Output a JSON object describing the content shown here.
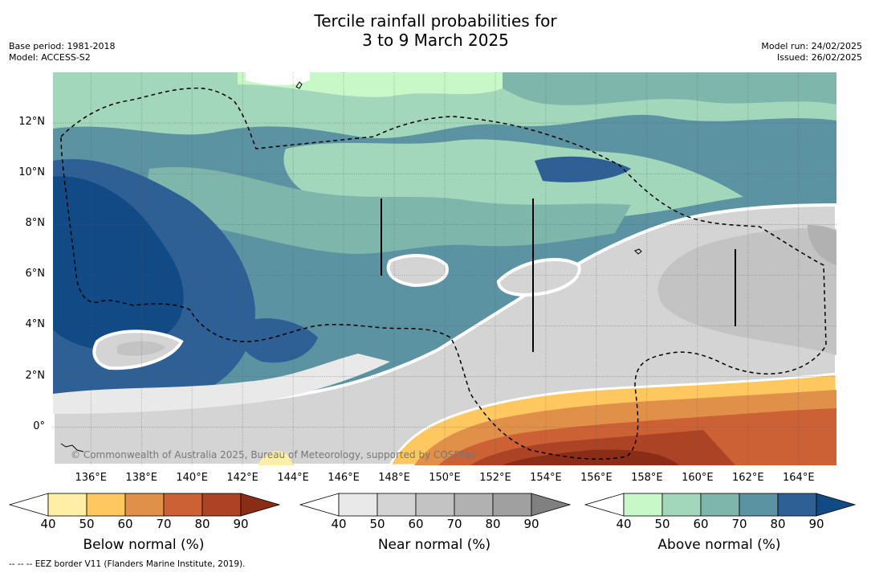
{
  "header": {
    "title_line1": "Tercile rainfall probabilities for",
    "title_line2": "3 to 9 March 2025",
    "base_period": "Base period: 1981-2018",
    "model": "Model: ACCESS-S2",
    "model_run": "Model run: 24/02/2025",
    "issued": "Issued: 26/02/2025"
  },
  "map": {
    "copyright": "© Commonwealth of Australia 2025, Bureau of Meteorology, supported by COSPPac",
    "lon_ticks": [
      "136°E",
      "138°E",
      "140°E",
      "142°E",
      "144°E",
      "146°E",
      "148°E",
      "150°E",
      "152°E",
      "154°E",
      "156°E",
      "158°E",
      "160°E",
      "162°E",
      "164°E"
    ],
    "lat_ticks": [
      "12°N",
      "10°N",
      "8°N",
      "6°N",
      "4°N",
      "2°N",
      "0°"
    ],
    "lon_range": [
      134.5,
      165.5
    ],
    "lat_range": [
      -1.5,
      14
    ],
    "gridlines": true
  },
  "colorbars": [
    {
      "label": "Below normal (%)",
      "ticks": [
        "40",
        "50",
        "60",
        "70",
        "80",
        "90"
      ],
      "colors": [
        "#ffffff",
        "#ffeea6",
        "#fec75f",
        "#e1904a",
        "#cb6135",
        "#ad4325",
        "#8a2c16"
      ]
    },
    {
      "label": "Near normal (%)",
      "ticks": [
        "40",
        "50",
        "60",
        "70",
        "80",
        "90"
      ],
      "colors": [
        "#ffffff",
        "#e9e9e9",
        "#d4d4d4",
        "#c3c3c3",
        "#b1b1b1",
        "#a0a0a0",
        "#808080"
      ]
    },
    {
      "label": "Above normal (%)",
      "ticks": [
        "40",
        "50",
        "60",
        "70",
        "80",
        "90"
      ],
      "colors": [
        "#ffffff",
        "#c8f8c8",
        "#a2d7bc",
        "#7fb6ab",
        "#5b93a2",
        "#2e5f95",
        "#114a84"
      ]
    }
  ],
  "legend_note": "--  --  -- EEZ border V11 (Flanders Marine Institute, 2019)."
}
